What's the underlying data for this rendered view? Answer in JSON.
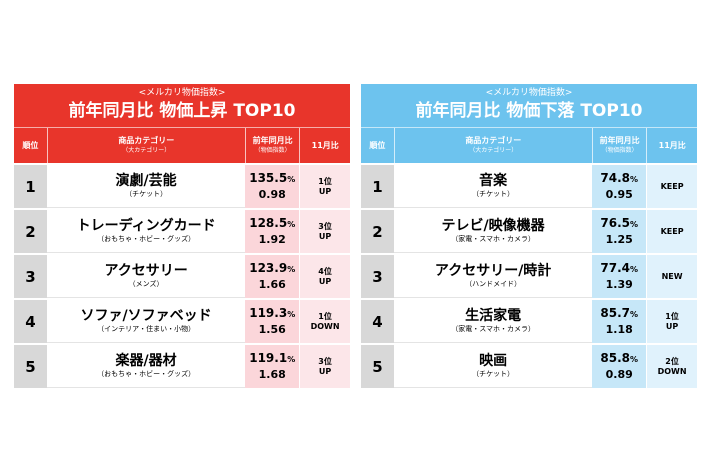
{
  "tables": [
    {
      "id": "up",
      "subtitle": "<メルカリ物価指数>",
      "title": "前年同月比 物価上昇 TOP10",
      "accent": "#e8352b",
      "headers": {
        "rank": "順位",
        "category": "商品カテゴリー",
        "category_sub": "（大カテゴリー）",
        "yoy": "前年同月比",
        "yoy_sub": "（物価指数）",
        "month": "11月比"
      },
      "rows": [
        {
          "rank": "1",
          "name": "演劇/芸能",
          "sub": "（チケット）",
          "pct": "135.5",
          "unit": "%",
          "index": "0.98",
          "m1": "1位",
          "m2": "UP"
        },
        {
          "rank": "2",
          "name": "トレーディングカード",
          "sub": "（おもちゃ・ホビー・グッズ）",
          "pct": "128.5",
          "unit": "%",
          "index": "1.92",
          "m1": "3位",
          "m2": "UP"
        },
        {
          "rank": "3",
          "name": "アクセサリー",
          "sub": "（メンズ）",
          "pct": "123.9",
          "unit": "%",
          "index": "1.66",
          "m1": "4位",
          "m2": "UP"
        },
        {
          "rank": "4",
          "name": "ソファ/ソファベッド",
          "sub": "（インテリア・住まい・小物）",
          "pct": "119.3",
          "unit": "%",
          "index": "1.56",
          "m1": "1位",
          "m2": "DOWN"
        },
        {
          "rank": "5",
          "name": "楽器/器材",
          "sub": "（おもちゃ・ホビー・グッズ）",
          "pct": "119.1",
          "unit": "%",
          "index": "1.68",
          "m1": "3位",
          "m2": "UP"
        }
      ]
    },
    {
      "id": "down",
      "subtitle": "<メルカリ物価指数>",
      "title": "前年同月比 物価下落 TOP10",
      "accent": "#6dc3ee",
      "headers": {
        "rank": "順位",
        "category": "商品カテゴリー",
        "category_sub": "（大カテゴリー）",
        "yoy": "前年同月比",
        "yoy_sub": "（物価指数）",
        "month": "11月比"
      },
      "rows": [
        {
          "rank": "1",
          "name": "音楽",
          "sub": "（チケット）",
          "pct": "74.8",
          "unit": "%",
          "index": "0.95",
          "m1": "KEEP",
          "m2": ""
        },
        {
          "rank": "2",
          "name": "テレビ/映像機器",
          "sub": "（家電・スマホ・カメラ）",
          "pct": "76.5",
          "unit": "%",
          "index": "1.25",
          "m1": "KEEP",
          "m2": ""
        },
        {
          "rank": "3",
          "name": "アクセサリー/時計",
          "sub": "（ハンドメイド）",
          "pct": "77.4",
          "unit": "%",
          "index": "1.39",
          "m1": "NEW",
          "m2": ""
        },
        {
          "rank": "4",
          "name": "生活家電",
          "sub": "（家電・スマホ・カメラ）",
          "pct": "85.7",
          "unit": "%",
          "index": "1.18",
          "m1": "1位",
          "m2": "UP"
        },
        {
          "rank": "5",
          "name": "映画",
          "sub": "（チケット）",
          "pct": "85.8",
          "unit": "%",
          "index": "0.89",
          "m1": "2位",
          "m2": "DOWN"
        }
      ]
    }
  ]
}
